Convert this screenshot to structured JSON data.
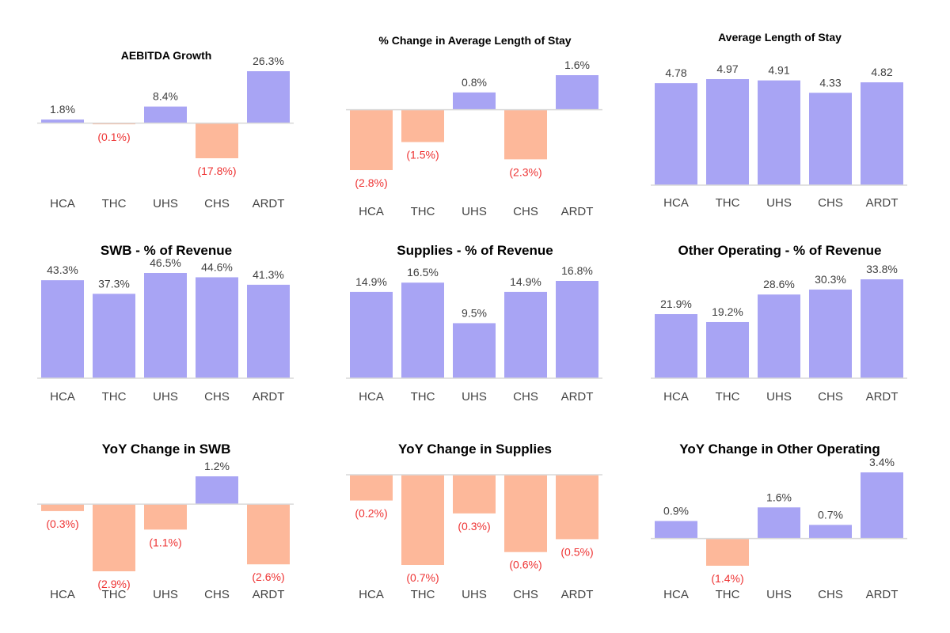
{
  "colors": {
    "positive": "#a8a4f4",
    "negative": "#fdb89a",
    "label_positive": "#404040",
    "label_negative": "#ee3333",
    "baseline": "#d9d9d9"
  },
  "chart_data": [
    {
      "type": "bar",
      "title": "AEBITDA Growth",
      "categories": [
        "HCA",
        "THC",
        "UHS",
        "CHS",
        "ARDT"
      ],
      "values": [
        1.8,
        -0.1,
        8.4,
        -17.8,
        26.3
      ],
      "labels": [
        "1.8%",
        "(0.1%)",
        "8.4%",
        "(17.8%)",
        "26.3%"
      ]
    },
    {
      "type": "bar",
      "title": "% Change in Average Length of Stay",
      "categories": [
        "HCA",
        "THC",
        "UHS",
        "CHS",
        "ARDT"
      ],
      "values": [
        -2.8,
        -1.5,
        0.8,
        -2.3,
        1.6
      ],
      "labels": [
        "(2.8%)",
        "(1.5%)",
        "0.8%",
        "(2.3%)",
        "1.6%"
      ]
    },
    {
      "type": "bar",
      "title": "Average Length of Stay",
      "categories": [
        "HCA",
        "THC",
        "UHS",
        "CHS",
        "ARDT"
      ],
      "values": [
        4.78,
        4.97,
        4.91,
        4.33,
        4.82
      ],
      "labels": [
        "4.78",
        "4.97",
        "4.91",
        "4.33",
        "4.82"
      ]
    },
    {
      "type": "bar",
      "title": "SWB - % of Revenue",
      "categories": [
        "HCA",
        "THC",
        "UHS",
        "CHS",
        "ARDT"
      ],
      "values": [
        43.3,
        37.3,
        46.5,
        44.6,
        41.3
      ],
      "labels": [
        "43.3%",
        "37.3%",
        "46.5%",
        "44.6%",
        "41.3%"
      ]
    },
    {
      "type": "bar",
      "title": "Supplies - % of Revenue",
      "categories": [
        "HCA",
        "THC",
        "UHS",
        "CHS",
        "ARDT"
      ],
      "values": [
        14.9,
        16.5,
        9.5,
        14.9,
        16.8
      ],
      "labels": [
        "14.9%",
        "16.5%",
        "9.5%",
        "14.9%",
        "16.8%"
      ]
    },
    {
      "type": "bar",
      "title": "Other Operating - % of Revenue",
      "categories": [
        "HCA",
        "THC",
        "UHS",
        "CHS",
        "ARDT"
      ],
      "values": [
        21.9,
        19.2,
        28.6,
        30.3,
        33.8
      ],
      "labels": [
        "21.9%",
        "19.2%",
        "28.6%",
        "30.3%",
        "33.8%"
      ]
    },
    {
      "type": "bar",
      "title": "YoY Change in SWB",
      "categories": [
        "HCA",
        "THC",
        "UHS",
        "CHS",
        "ARDT"
      ],
      "values": [
        -0.3,
        -2.9,
        -1.1,
        1.2,
        -2.6
      ],
      "labels": [
        "(0.3%)",
        "(2.9%)",
        "(1.1%)",
        "1.2%",
        "(2.6%)"
      ]
    },
    {
      "type": "bar",
      "title": "YoY Change in Supplies",
      "categories": [
        "HCA",
        "THC",
        "UHS",
        "CHS",
        "ARDT"
      ],
      "values": [
        -0.2,
        -0.7,
        -0.3,
        -0.6,
        -0.5
      ],
      "labels": [
        "(0.2%)",
        "(0.7%)",
        "(0.3%)",
        "(0.6%)",
        "(0.5%)"
      ]
    },
    {
      "type": "bar",
      "title": "YoY Change in Other Operating",
      "categories": [
        "HCA",
        "THC",
        "UHS",
        "CHS",
        "ARDT"
      ],
      "values": [
        0.9,
        -1.4,
        1.6,
        0.7,
        3.4
      ],
      "labels": [
        "0.9%",
        "(1.4%)",
        "1.6%",
        "0.7%",
        "3.4%"
      ]
    }
  ]
}
